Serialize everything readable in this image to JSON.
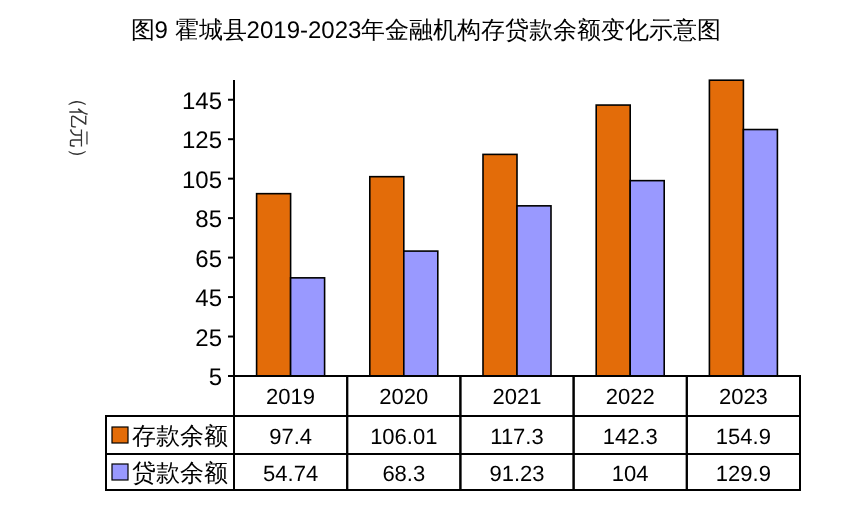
{
  "chart_data": {
    "type": "bar",
    "title": "图9 霍城县2019-2023年金融机构存贷款余额变化示意图",
    "ylabel": "（亿元）",
    "categories": [
      "2019",
      "2020",
      "2021",
      "2022",
      "2023"
    ],
    "series": [
      {
        "name": "存款余额",
        "color": "#e36c09",
        "values": [
          97.4,
          106.01,
          117.3,
          142.3,
          154.9
        ]
      },
      {
        "name": "贷款余额",
        "color": "#9999ff",
        "values": [
          54.74,
          68.3,
          91.23,
          104,
          129.9
        ]
      }
    ],
    "value_labels": [
      [
        "97.4",
        "106.01",
        "117.3",
        "142.3",
        "154.9"
      ],
      [
        "54.74",
        "68.3",
        "91.23",
        "104",
        "129.9"
      ]
    ],
    "ylim": [
      5,
      155
    ],
    "yticks": [
      5,
      25,
      45,
      65,
      85,
      105,
      125,
      145
    ],
    "grid": false,
    "legend": "bottom left"
  }
}
